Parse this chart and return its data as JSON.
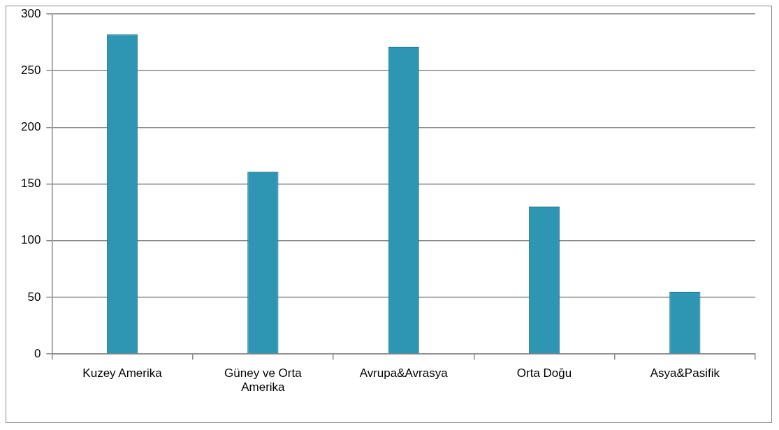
{
  "chart_data": {
    "type": "bar",
    "categories": [
      "Kuzey Amerika",
      "Güney ve Orta Amerika",
      "Avrupa&Avrasya",
      "Orta Doğu",
      "Asya&Pasifik"
    ],
    "values": [
      282,
      161,
      271,
      130,
      55
    ],
    "color": "#2e95b3",
    "ylim": [
      0,
      300
    ],
    "yticks": [
      0,
      50,
      100,
      150,
      200,
      250,
      300
    ],
    "grid": "y",
    "legend": false
  }
}
